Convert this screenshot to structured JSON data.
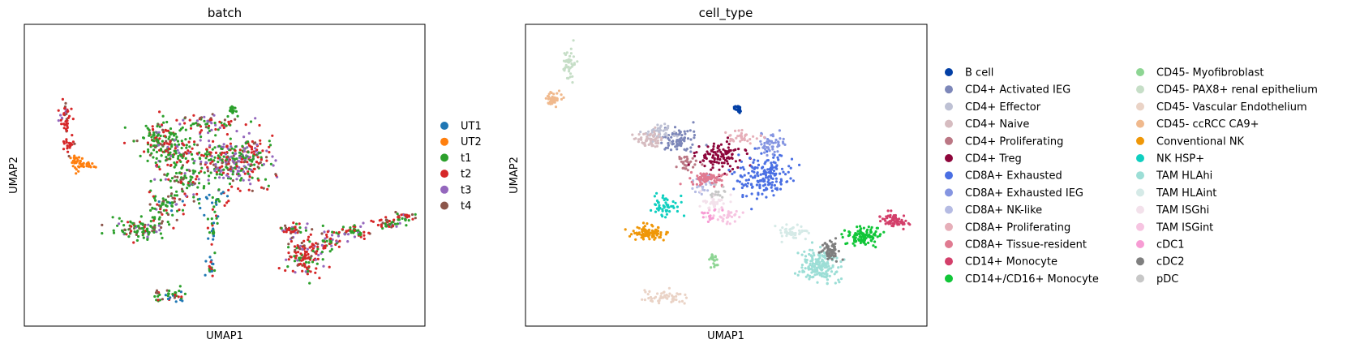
{
  "chart_data": [
    {
      "type": "scatter",
      "title": "batch",
      "xlabel": "UMAP1",
      "ylabel": "UMAP2",
      "xlim": [
        0,
        100
      ],
      "ylim": [
        0,
        100
      ],
      "grid": false,
      "legend_position": "right",
      "legend": [
        {
          "label": "UT1",
          "color": "#1f77b4"
        },
        {
          "label": "UT2",
          "color": "#ff7f0e"
        },
        {
          "label": "t1",
          "color": "#2ca02c"
        },
        {
          "label": "t2",
          "color": "#d62728"
        },
        {
          "label": "t3",
          "color": "#9467bd"
        },
        {
          "label": "t4",
          "color": "#8c564b"
        }
      ],
      "clusters": [
        {
          "x": 52,
          "y": 53,
          "rx": 7,
          "ry": 6,
          "n": 130,
          "mix": [
            0,
            0,
            3,
            2,
            5,
            1
          ]
        },
        {
          "x": 48,
          "y": 57,
          "rx": 9,
          "ry": 5,
          "n": 120,
          "mix": [
            0,
            0,
            4,
            4,
            3,
            1
          ]
        },
        {
          "x": 36,
          "y": 58,
          "rx": 6,
          "ry": 6,
          "n": 120,
          "mix": [
            0,
            0,
            6,
            2,
            1,
            1
          ]
        },
        {
          "x": 33,
          "y": 63,
          "rx": 5,
          "ry": 5,
          "n": 80,
          "mix": [
            0,
            0,
            6,
            2,
            1,
            1
          ]
        },
        {
          "x": 45,
          "y": 67,
          "rx": 9,
          "ry": 3,
          "n": 80,
          "mix": [
            0,
            0,
            4,
            3,
            2,
            1
          ]
        },
        {
          "x": 57,
          "y": 56,
          "rx": 5,
          "ry": 7,
          "n": 90,
          "mix": [
            0,
            0,
            4,
            3,
            4,
            1
          ]
        },
        {
          "x": 40,
          "y": 48,
          "rx": 5,
          "ry": 6,
          "n": 90,
          "mix": [
            0,
            0,
            4,
            2,
            1,
            2
          ]
        },
        {
          "x": 35,
          "y": 40,
          "rx": 4,
          "ry": 5,
          "n": 70,
          "mix": [
            1,
            0,
            5,
            1,
            1,
            1
          ]
        },
        {
          "x": 29,
          "y": 32,
          "rx": 6,
          "ry": 3,
          "n": 100,
          "mix": [
            0,
            0,
            5,
            2,
            1,
            2
          ]
        },
        {
          "x": 15,
          "y": 53,
          "rx": 3,
          "ry": 1.5,
          "n": 28,
          "mix": [
            0,
            10,
            0,
            0,
            0,
            0
          ]
        },
        {
          "x": 13,
          "y": 55,
          "rx": 2,
          "ry": 1.5,
          "n": 20,
          "mix": [
            0,
            10,
            0,
            0,
            0,
            0
          ]
        },
        {
          "x": 11,
          "y": 60,
          "rx": 1.5,
          "ry": 3,
          "n": 22,
          "mix": [
            0,
            0,
            0,
            8,
            0,
            2
          ]
        },
        {
          "x": 10.5,
          "y": 69,
          "rx": 1.5,
          "ry": 5,
          "n": 40,
          "mix": [
            0,
            0,
            0,
            7,
            1,
            2
          ]
        },
        {
          "x": 52,
          "y": 72,
          "rx": 1,
          "ry": 1.5,
          "n": 15,
          "mix": [
            0,
            0,
            8,
            2,
            0,
            0
          ]
        },
        {
          "x": 48,
          "y": 42,
          "rx": 3,
          "ry": 4,
          "n": 30,
          "mix": [
            6,
            0,
            3,
            1,
            0,
            0
          ]
        },
        {
          "x": 47,
          "y": 32,
          "rx": 1,
          "ry": 4,
          "n": 20,
          "mix": [
            4,
            0,
            4,
            2,
            0,
            0
          ]
        },
        {
          "x": 46.5,
          "y": 20,
          "rx": 1,
          "ry": 4,
          "n": 20,
          "mix": [
            3,
            0,
            5,
            2,
            0,
            0
          ]
        },
        {
          "x": 36,
          "y": 10,
          "rx": 4,
          "ry": 2,
          "n": 40,
          "mix": [
            1,
            0,
            6,
            2,
            0,
            1
          ]
        },
        {
          "x": 70,
          "y": 23,
          "rx": 4,
          "ry": 6,
          "n": 130,
          "mix": [
            0,
            0,
            2,
            6,
            1,
            1
          ]
        },
        {
          "x": 67,
          "y": 32,
          "rx": 3,
          "ry": 2,
          "n": 40,
          "mix": [
            0,
            0,
            3,
            5,
            1,
            1
          ]
        },
        {
          "x": 77,
          "y": 29,
          "rx": 3,
          "ry": 4,
          "n": 50,
          "mix": [
            0,
            0,
            3,
            4,
            2,
            1
          ]
        },
        {
          "x": 83,
          "y": 31,
          "rx": 3,
          "ry": 2,
          "n": 40,
          "mix": [
            0,
            0,
            4,
            3,
            2,
            1
          ]
        },
        {
          "x": 91,
          "y": 34,
          "rx": 3,
          "ry": 1.5,
          "n": 40,
          "mix": [
            0,
            0,
            4,
            3,
            1,
            2
          ]
        },
        {
          "x": 95,
          "y": 36,
          "rx": 2,
          "ry": 1.5,
          "n": 30,
          "mix": [
            0,
            0,
            4,
            3,
            1,
            2
          ]
        }
      ]
    },
    {
      "type": "scatter",
      "title": "cell_type",
      "xlabel": "UMAP1",
      "ylabel": "UMAP2",
      "xlim": [
        0,
        100
      ],
      "ylim": [
        0,
        100
      ],
      "grid": false,
      "legend_position": "right",
      "legend": [
        {
          "label": "B cell",
          "color": "#023fa5"
        },
        {
          "label": "CD4+ Activated IEG",
          "color": "#7d87b9"
        },
        {
          "label": "CD4+ Effector",
          "color": "#bec1d4"
        },
        {
          "label": "CD4+ Naive",
          "color": "#d6bcc0"
        },
        {
          "label": "CD4+ Proliferating",
          "color": "#bb7784"
        },
        {
          "label": "CD4+ Treg",
          "color": "#8e063b"
        },
        {
          "label": "CD8A+ Exhausted",
          "color": "#4a6fe3"
        },
        {
          "label": "CD8A+ Exhausted IEG",
          "color": "#8595e1"
        },
        {
          "label": "CD8A+ NK-like",
          "color": "#b5bbe3"
        },
        {
          "label": "CD8A+ Proliferating",
          "color": "#e6afb9"
        },
        {
          "label": "CD8A+ Tissue-resident",
          "color": "#e07b91"
        },
        {
          "label": "CD14+ Monocyte",
          "color": "#d33f6a"
        },
        {
          "label": "CD14+/CD16+ Monocyte",
          "color": "#11c638"
        },
        {
          "label": "CD45- Myofibroblast",
          "color": "#8dd593"
        },
        {
          "label": "CD45- PAX8+ renal epithelium",
          "color": "#c6dec7"
        },
        {
          "label": "CD45- Vascular Endothelium",
          "color": "#ead3c6"
        },
        {
          "label": "CD45- ccRCC CA9+",
          "color": "#f0b98d"
        },
        {
          "label": "Conventional NK",
          "color": "#ef9708"
        },
        {
          "label": "NK HSP+",
          "color": "#0fcfc0"
        },
        {
          "label": "TAM HLAhi",
          "color": "#9cded6"
        },
        {
          "label": "TAM HLAint",
          "color": "#d5eae7"
        },
        {
          "label": "TAM ISGhi",
          "color": "#f3e1eb"
        },
        {
          "label": "TAM ISGint",
          "color": "#f6c4e1"
        },
        {
          "label": "cDC1",
          "color": "#f79cd4"
        },
        {
          "label": "cDC2",
          "color": "#7f7f7f"
        },
        {
          "label": "pDC",
          "color": "#c7c7c7"
        }
      ],
      "clusters": [
        {
          "x": 53,
          "y": 72,
          "rx": 1,
          "ry": 1.5,
          "n": 25,
          "c": 0
        },
        {
          "x": 38,
          "y": 62,
          "rx": 5,
          "ry": 4,
          "n": 80,
          "c": 1
        },
        {
          "x": 33,
          "y": 64,
          "rx": 3,
          "ry": 3,
          "n": 50,
          "c": 2
        },
        {
          "x": 31,
          "y": 62,
          "rx": 3,
          "ry": 3,
          "n": 60,
          "c": 3
        },
        {
          "x": 40,
          "y": 54,
          "rx": 3,
          "ry": 2,
          "n": 30,
          "c": 4
        },
        {
          "x": 48,
          "y": 56,
          "rx": 5,
          "ry": 4,
          "n": 110,
          "c": 5
        },
        {
          "x": 60,
          "y": 50,
          "rx": 6,
          "ry": 7,
          "n": 170,
          "c": 6
        },
        {
          "x": 61,
          "y": 60,
          "rx": 3,
          "ry": 3,
          "n": 50,
          "c": 7
        },
        {
          "x": 44,
          "y": 47,
          "rx": 3,
          "ry": 3,
          "n": 35,
          "c": 8
        },
        {
          "x": 53,
          "y": 63,
          "rx": 5,
          "ry": 2,
          "n": 35,
          "c": 9
        },
        {
          "x": 45,
          "y": 49,
          "rx": 4,
          "ry": 2,
          "n": 70,
          "c": 10
        },
        {
          "x": 92,
          "y": 35,
          "rx": 3,
          "ry": 2,
          "n": 70,
          "c": 11
        },
        {
          "x": 84,
          "y": 30,
          "rx": 4,
          "ry": 3,
          "n": 100,
          "c": 12
        },
        {
          "x": 47,
          "y": 22,
          "rx": 1,
          "ry": 3,
          "n": 20,
          "c": 13
        },
        {
          "x": 11,
          "y": 87,
          "rx": 1.5,
          "ry": 5,
          "n": 40,
          "c": 14
        },
        {
          "x": 34,
          "y": 10,
          "rx": 5,
          "ry": 2,
          "n": 50,
          "c": 15
        },
        {
          "x": 7,
          "y": 75,
          "rx": 2,
          "ry": 2,
          "n": 40,
          "c": 16
        },
        {
          "x": 31,
          "y": 31,
          "rx": 4,
          "ry": 2,
          "n": 100,
          "c": 17
        },
        {
          "x": 35,
          "y": 40,
          "rx": 3,
          "ry": 3,
          "n": 50,
          "c": 18
        },
        {
          "x": 73,
          "y": 20,
          "rx": 4,
          "ry": 5,
          "n": 180,
          "c": 19
        },
        {
          "x": 67,
          "y": 31,
          "rx": 3,
          "ry": 2,
          "n": 50,
          "c": 20
        },
        {
          "x": 47,
          "y": 40,
          "rx": 3,
          "ry": 3,
          "n": 40,
          "c": 21
        },
        {
          "x": 50,
          "y": 36,
          "rx": 3,
          "ry": 3,
          "n": 30,
          "c": 22
        },
        {
          "x": 46,
          "y": 37,
          "rx": 2,
          "ry": 2,
          "n": 15,
          "c": 23
        },
        {
          "x": 76,
          "y": 25,
          "rx": 2,
          "ry": 3,
          "n": 60,
          "c": 24
        },
        {
          "x": 48,
          "y": 44,
          "rx": 2,
          "ry": 2,
          "n": 15,
          "c": 25
        }
      ]
    }
  ]
}
